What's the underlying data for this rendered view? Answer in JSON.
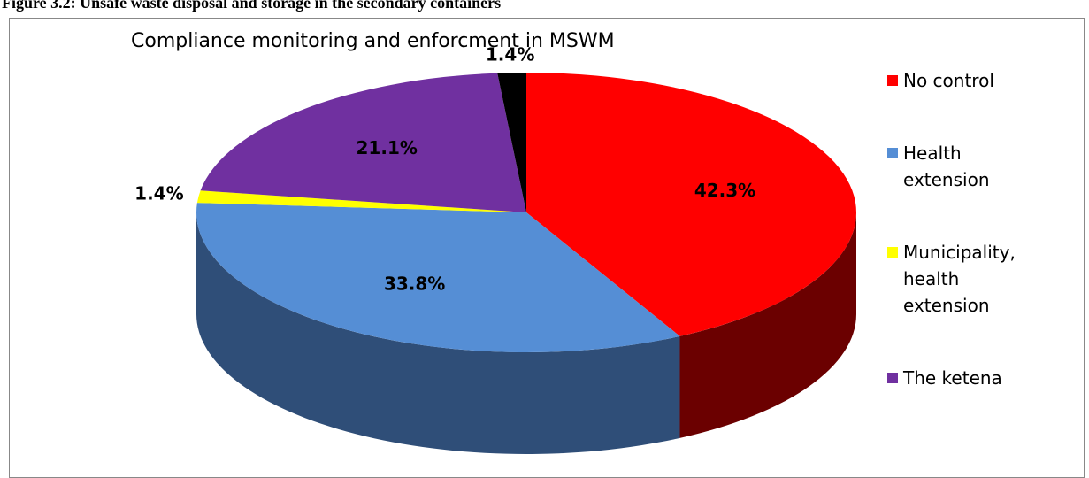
{
  "caption": "Figure 3.2: Unsafe waste disposal and storage in the secondary containers",
  "chart_data": {
    "type": "pie",
    "title": "Compliance monitoring and enforcment in MSWM",
    "categories": [
      "No control",
      "Health extension",
      "Municipality, health extension",
      "The ketena",
      null
    ],
    "values": [
      42.3,
      33.8,
      1.4,
      21.1,
      1.4
    ],
    "value_labels": [
      "42.3%",
      "33.8%",
      "1.4%",
      "21.1%",
      "1.4%"
    ],
    "colors": [
      "#ff0000",
      "#558ed5",
      "#ffff00",
      "#7030a0",
      "#000000"
    ],
    "side_colors": [
      "#6b0000",
      "#2f4e78",
      "#8a8a00",
      "#3d1a58",
      "#000000"
    ],
    "legend": "right"
  }
}
